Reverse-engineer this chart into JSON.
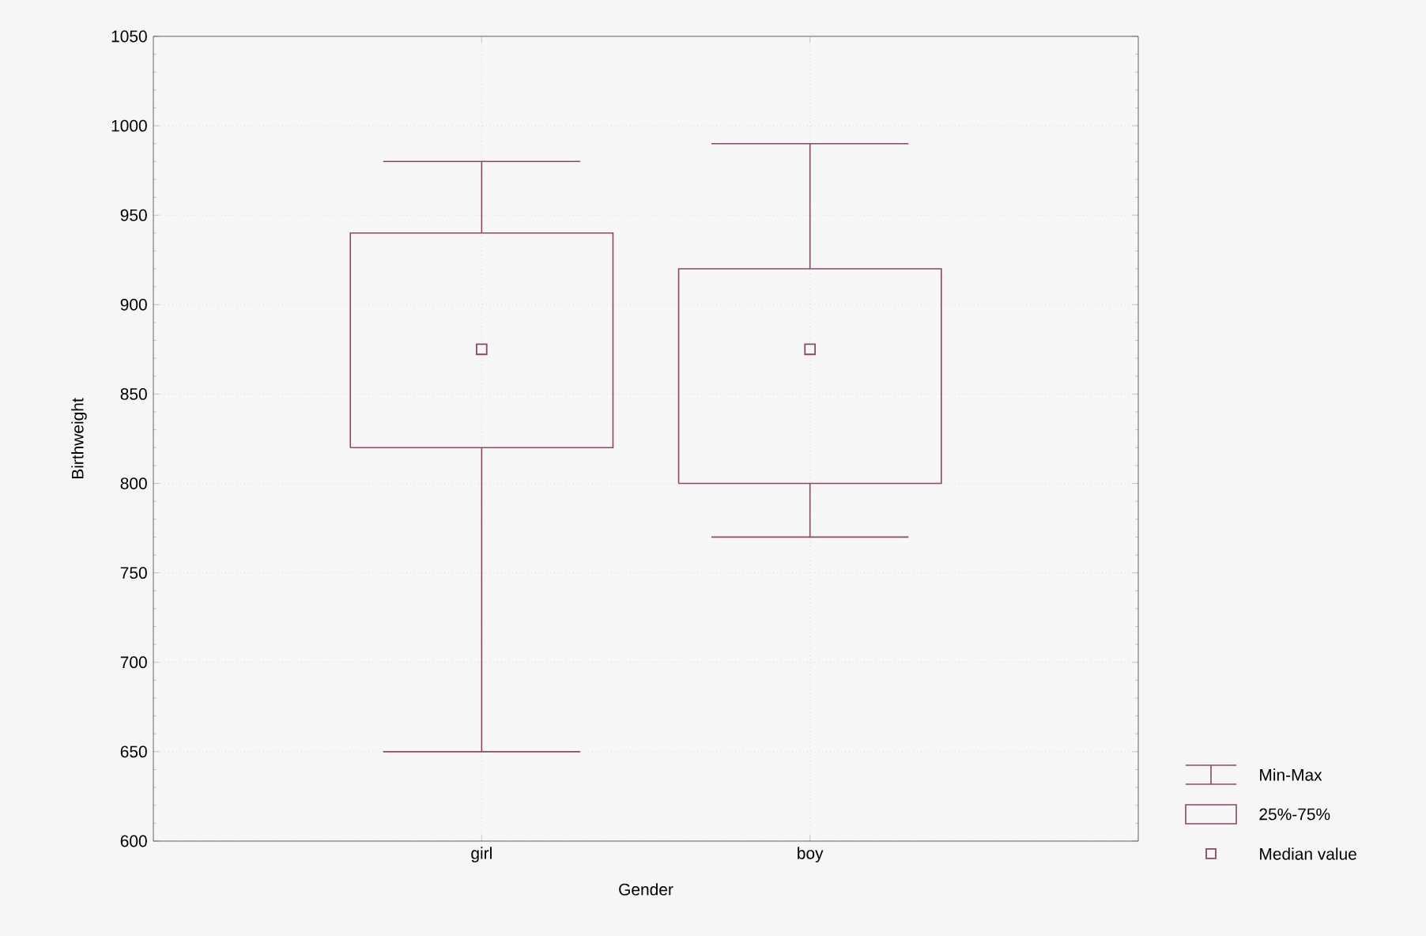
{
  "chart_data": {
    "type": "box",
    "xlabel": "Gender",
    "ylabel": "Birthweight",
    "categories": [
      "girl",
      "boy"
    ],
    "series": [
      {
        "color": "#8c4a58",
        "boxes": [
          {
            "low": 650,
            "q1": 820,
            "median": 875,
            "q3": 940,
            "high": 980
          },
          {
            "low": 770,
            "q1": 800,
            "median": 875,
            "q3": 920,
            "high": 990
          }
        ]
      }
    ],
    "ylim": [
      600,
      1050
    ],
    "yticks": [
      600,
      650,
      700,
      750,
      800,
      850,
      900,
      950,
      1000,
      1050
    ],
    "grid": true,
    "annotations": [
      "Min-Max",
      "25%-75%",
      "Median value"
    ]
  }
}
